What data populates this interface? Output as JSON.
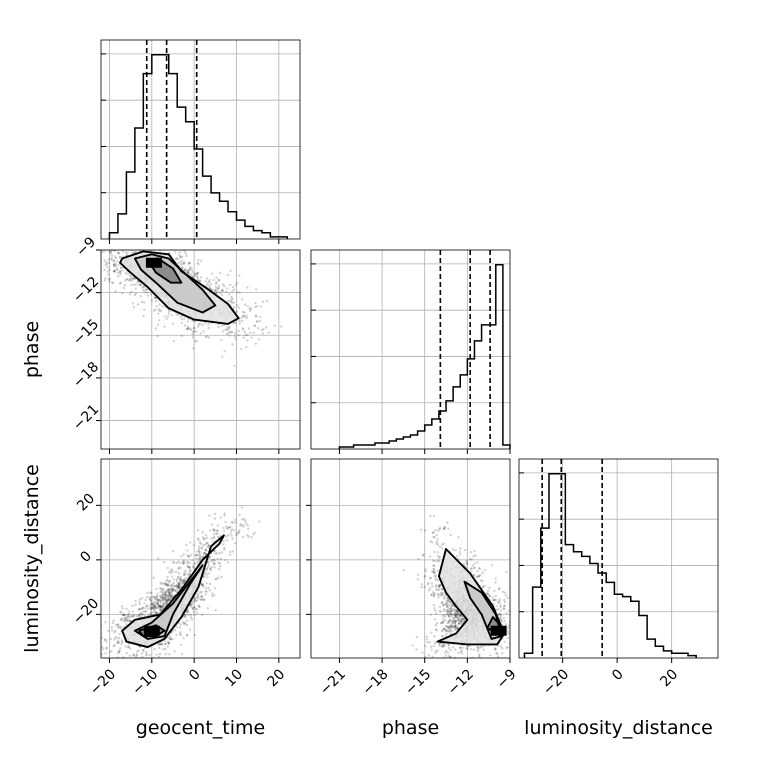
{
  "chart_data": {
    "type": "corner",
    "parameters": [
      "geocent_time",
      "phase",
      "luminosity_distance"
    ],
    "axis_labels": {
      "geocent_time": "geocent_time",
      "phase": "phase",
      "luminosity_distance": "luminosity_distance"
    },
    "ranges": {
      "geocent_time": [
        -22,
        25
      ],
      "phase": [
        -23.0,
        -9.0
      ],
      "luminosity_distance": [
        -36,
        37
      ]
    },
    "ticks": {
      "geocent_time": [
        -20,
        -10,
        0,
        10,
        20
      ],
      "phase": [
        -21,
        -18,
        -15,
        -12,
        -9
      ],
      "luminosity_distance": [
        -20,
        0,
        20
      ]
    },
    "tick_labels": {
      "geocent_time": [
        "−20",
        "−10",
        "0",
        "10",
        "20"
      ],
      "phase": [
        "−21",
        "−18",
        "−15",
        "−12",
        "−9"
      ],
      "luminosity_distance": [
        "−20",
        "0",
        "20"
      ]
    },
    "grid": true,
    "histograms": {
      "geocent_time": {
        "edges": [
          -20,
          -18,
          -16,
          -14,
          -12,
          -10,
          -8,
          -6,
          -4,
          -2,
          0,
          2,
          4,
          6,
          8,
          10,
          12,
          14,
          16,
          18,
          20,
          22
        ],
        "counts": [
          0.03,
          0.12,
          0.32,
          0.53,
          0.79,
          0.88,
          0.88,
          0.79,
          0.63,
          0.56,
          0.43,
          0.3,
          0.22,
          0.18,
          0.13,
          0.09,
          0.06,
          0.04,
          0.03,
          0.01,
          0.01
        ],
        "quantiles": [
          -11.2,
          -6.5,
          0.6
        ]
      },
      "phase": {
        "edges": [
          -21.0,
          -20.5,
          -20.0,
          -19.5,
          -19.0,
          -18.5,
          -18.0,
          -17.5,
          -17.0,
          -16.5,
          -16.0,
          -15.5,
          -15.0,
          -14.5,
          -14.0,
          -13.5,
          -13.0,
          -12.5,
          -12.0,
          -11.5,
          -11.0,
          -10.5,
          -10.0,
          -9.5,
          -9.0
        ],
        "counts": [
          0.01,
          0.01,
          0.02,
          0.02,
          0.02,
          0.03,
          0.03,
          0.04,
          0.05,
          0.06,
          0.07,
          0.09,
          0.12,
          0.15,
          0.19,
          0.24,
          0.31,
          0.37,
          0.45,
          0.54,
          0.62,
          0.62,
          0.92,
          0.02
        ],
        "quantiles": [
          -13.9,
          -11.8,
          -10.4
        ]
      },
      "luminosity_distance": {
        "edges": [
          -34,
          -31,
          -28,
          -25,
          -22,
          -19,
          -16,
          -13,
          -10,
          -7,
          -4,
          -1,
          2,
          5,
          8,
          11,
          14,
          17,
          20,
          23,
          26,
          29
        ],
        "counts": [
          0.02,
          0.3,
          0.55,
          0.78,
          0.78,
          0.48,
          0.45,
          0.43,
          0.4,
          0.36,
          0.32,
          0.27,
          0.26,
          0.24,
          0.18,
          0.08,
          0.05,
          0.03,
          0.02,
          0.02,
          0.01
        ],
        "quantiles": [
          -27.5,
          -20.5,
          -5.5
        ]
      }
    },
    "pairs": [
      {
        "x": "geocent_time",
        "y": "phase",
        "peak": [
          -9.5,
          -9.9
        ],
        "contours": [
          [
            [
              -17.0,
              -9.6
            ],
            [
              -12.0,
              -9.1
            ],
            [
              -6.0,
              -9.3
            ],
            [
              -3.0,
              -10.5
            ],
            [
              3.0,
              -11.7
            ],
            [
              8.0,
              -12.8
            ],
            [
              10.5,
              -13.8
            ],
            [
              8.0,
              -14.2
            ],
            [
              0.0,
              -13.9
            ],
            [
              -6.0,
              -13.1
            ],
            [
              -11.0,
              -11.6
            ],
            [
              -15.0,
              -10.6
            ],
            [
              -17.5,
              -9.9
            ]
          ],
          [
            [
              -14.0,
              -9.6
            ],
            [
              -10.0,
              -9.3
            ],
            [
              -6.0,
              -9.6
            ],
            [
              -2.0,
              -10.7
            ],
            [
              2.0,
              -11.8
            ],
            [
              5.0,
              -12.9
            ],
            [
              2.0,
              -13.4
            ],
            [
              -4.0,
              -12.7
            ],
            [
              -9.0,
              -11.3
            ],
            [
              -12.5,
              -10.4
            ]
          ],
          [
            [
              -11.0,
              -9.7
            ],
            [
              -8.5,
              -9.6
            ],
            [
              -5.0,
              -10.3
            ],
            [
              -3.0,
              -11.3
            ],
            [
              -5.5,
              -11.3
            ],
            [
              -9.0,
              -10.6
            ]
          ]
        ]
      },
      {
        "x": "geocent_time",
        "y": "luminosity_distance",
        "peak": [
          -10.0,
          -26.0
        ],
        "contours": [
          [
            [
              -17.0,
              -26.0
            ],
            [
              -14.0,
              -22.0
            ],
            [
              -8.0,
              -20.0
            ],
            [
              -3.0,
              -11.0
            ],
            [
              2.0,
              0.0
            ],
            [
              6.0,
              6.0
            ],
            [
              7.0,
              9.0
            ],
            [
              4.0,
              5.0
            ],
            [
              1.0,
              -10.0
            ],
            [
              -3.0,
              -21.0
            ],
            [
              -7.0,
              -29.0
            ],
            [
              -11.0,
              -32.0
            ],
            [
              -16.0,
              -30.0
            ]
          ],
          [
            [
              -14.0,
              -26.0
            ],
            [
              -10.0,
              -23.0
            ],
            [
              -5.0,
              -16.0
            ],
            [
              -1.0,
              -8.0
            ],
            [
              2.0,
              -2.0
            ],
            [
              -1.0,
              -9.0
            ],
            [
              -5.0,
              -20.0
            ],
            [
              -7.0,
              -28.0
            ],
            [
              -11.0,
              -29.0
            ]
          ],
          [
            [
              -13.0,
              -26.0
            ],
            [
              -9.0,
              -24.0
            ],
            [
              -7.0,
              -26.0
            ],
            [
              -9.0,
              -28.0
            ],
            [
              -12.0,
              -28.0
            ]
          ]
        ]
      },
      {
        "x": "phase",
        "y": "luminosity_distance",
        "peak": [
          -9.8,
          -26.0
        ],
        "contours": [
          [
            [
              -14.0,
              -6.0
            ],
            [
              -13.5,
              4.0
            ],
            [
              -11.8,
              -5.0
            ],
            [
              -10.2,
              -17.0
            ],
            [
              -9.4,
              -27.0
            ],
            [
              -9.9,
              -31.0
            ],
            [
              -12.0,
              -31.0
            ],
            [
              -14.1,
              -30.0
            ],
            [
              -12.8,
              -27.0
            ],
            [
              -12.0,
              -22.0
            ],
            [
              -12.8,
              -17.0
            ],
            [
              -13.5,
              -12.0
            ]
          ],
          [
            [
              -12.2,
              -8.0
            ],
            [
              -11.0,
              -12.0
            ],
            [
              -10.0,
              -20.0
            ],
            [
              -9.6,
              -28.0
            ],
            [
              -10.3,
              -29.0
            ],
            [
              -11.0,
              -20.0
            ],
            [
              -11.8,
              -14.0
            ]
          ],
          [
            [
              -10.2,
              -21.0
            ],
            [
              -9.5,
              -25.0
            ],
            [
              -9.6,
              -28.0
            ],
            [
              -10.6,
              -25.0
            ]
          ]
        ]
      }
    ]
  }
}
